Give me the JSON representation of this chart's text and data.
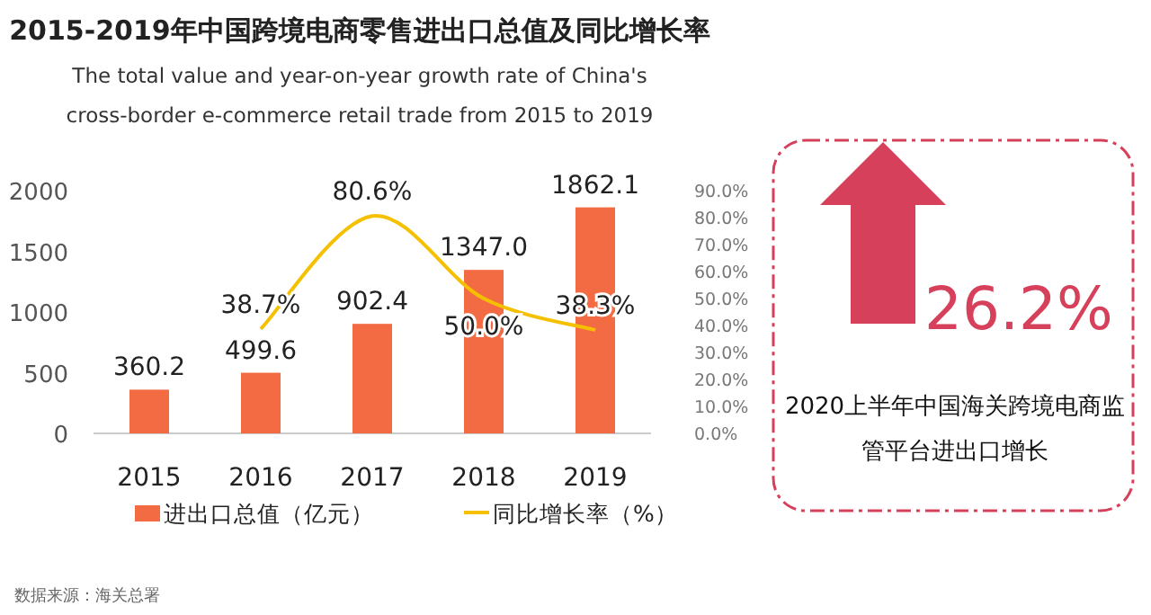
{
  "chart_data": [
    {
      "type": "bar",
      "title": "2015-2019年中国跨境电商零售进出口总值及同比增长率",
      "subtitle": "The total value and year-on-year growth rate of China's cross-border e-commerce retail trade from 2015 to 2019",
      "categories": [
        "2015",
        "2016",
        "2017",
        "2018",
        "2019"
      ],
      "series": [
        {
          "name": "进出口总值（亿元）",
          "type": "bar",
          "color": "#f26b43",
          "values": [
            360.2,
            499.6,
            902.4,
            1347.0,
            1862.1
          ],
          "value_labels": [
            "360.2",
            "499.6",
            "902.4",
            "1347.0",
            "1862.1"
          ]
        },
        {
          "name": "同比增长率（%）",
          "type": "line",
          "axis": "y2",
          "color": "#f5c000",
          "values": [
            null,
            38.7,
            80.6,
            50.0,
            38.3
          ],
          "value_labels": [
            null,
            "38.7%",
            "80.6%",
            "50.0%",
            "38.3%"
          ]
        }
      ],
      "ylim": [
        0,
        2000
      ],
      "yticks": [
        0,
        500,
        1000,
        1500,
        2000
      ],
      "y2lim": [
        0,
        90
      ],
      "y2ticks": [
        {
          "value": 0,
          "label": "0.0%"
        },
        {
          "value": 10,
          "label": "10.0%"
        },
        {
          "value": 20,
          "label": "20.0%"
        },
        {
          "value": 30,
          "label": "30.0%"
        },
        {
          "value": 40,
          "label": "40.0%"
        },
        {
          "value": 50,
          "label": "50.0%"
        },
        {
          "value": 60,
          "label": "60.0%"
        },
        {
          "value": 70,
          "label": "70.0%"
        },
        {
          "value": 80,
          "label": "80.0%"
        },
        {
          "value": 90,
          "label": "90.0%"
        }
      ],
      "legend": "bottom",
      "grid": false,
      "annotations": [
        "数据来源：海关总署"
      ]
    },
    {
      "type": "other",
      "annotations": [
        "26.2%",
        "2020上半年中国海关跨境电商监管平台进出口增长"
      ],
      "color": "#d6405a"
    }
  ]
}
